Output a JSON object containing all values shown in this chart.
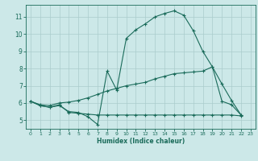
{
  "title": "",
  "xlabel": "Humidex (Indice chaleur)",
  "bg_color": "#cce8e8",
  "grid_color": "#aacccc",
  "line_color": "#1a6b5a",
  "xlim": [
    -0.5,
    23.5
  ],
  "ylim": [
    4.5,
    11.7
  ],
  "xticks": [
    0,
    1,
    2,
    3,
    4,
    5,
    6,
    7,
    8,
    9,
    10,
    11,
    12,
    13,
    14,
    15,
    16,
    17,
    18,
    19,
    20,
    21,
    22,
    23
  ],
  "yticks": [
    5,
    6,
    7,
    8,
    9,
    10,
    11
  ],
  "line1_x": [
    0,
    1,
    2,
    3,
    4,
    5,
    6,
    7,
    8,
    9,
    10,
    11,
    12,
    13,
    14,
    15,
    16,
    17,
    18,
    19,
    20,
    21,
    22
  ],
  "line1_y": [
    6.1,
    5.85,
    5.75,
    5.85,
    5.5,
    5.45,
    5.2,
    4.75,
    7.85,
    6.75,
    9.75,
    10.25,
    10.6,
    11.0,
    11.2,
    11.35,
    11.1,
    10.2,
    9.0,
    8.1,
    6.1,
    5.9,
    5.3
  ],
  "line2_x": [
    0,
    1,
    2,
    3,
    4,
    5,
    6,
    7,
    8,
    9,
    10,
    11,
    12,
    13,
    14,
    15,
    16,
    17,
    18,
    19,
    20,
    21,
    22
  ],
  "line2_y": [
    6.1,
    5.9,
    5.85,
    6.0,
    6.05,
    6.15,
    6.3,
    6.5,
    6.7,
    6.85,
    7.0,
    7.1,
    7.2,
    7.4,
    7.55,
    7.7,
    7.75,
    7.8,
    7.85,
    8.1,
    7.1,
    6.15,
    5.3
  ],
  "line3_x": [
    0,
    1,
    2,
    3,
    4,
    5,
    6,
    7,
    8,
    9,
    10,
    11,
    12,
    13,
    14,
    15,
    16,
    17,
    18,
    19,
    20,
    21,
    22
  ],
  "line3_y": [
    6.1,
    5.85,
    5.75,
    5.9,
    5.45,
    5.4,
    5.35,
    5.3,
    5.3,
    5.3,
    5.3,
    5.3,
    5.3,
    5.3,
    5.3,
    5.3,
    5.3,
    5.3,
    5.3,
    5.3,
    5.3,
    5.3,
    5.25
  ]
}
